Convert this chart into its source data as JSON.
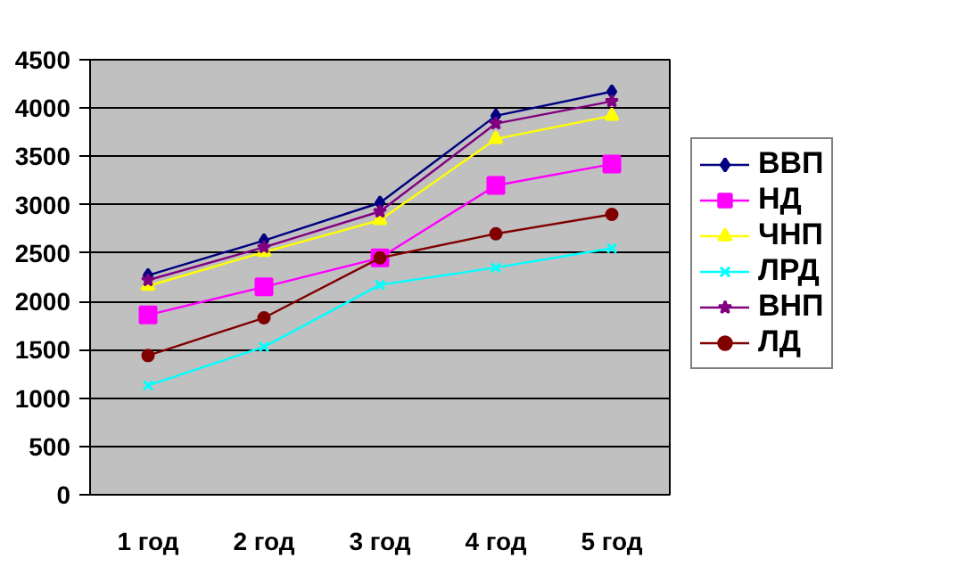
{
  "chart_data": {
    "type": "line",
    "categories": [
      "1 год",
      "2 год",
      "3 год",
      "4 год",
      "5 год"
    ],
    "ylim": [
      0,
      4500
    ],
    "yticks": [
      0,
      500,
      1000,
      1500,
      2000,
      2500,
      3000,
      3500,
      4000,
      4500
    ],
    "grid": "y",
    "legend": "right",
    "series": [
      {
        "name": "ВВП",
        "color": "#000080",
        "marker": "diamond",
        "values": [
          2270,
          2630,
          3020,
          3920,
          4170
        ]
      },
      {
        "name": "НД",
        "color": "#ff00ff",
        "marker": "square",
        "values": [
          1860,
          2150,
          2450,
          3200,
          3420
        ]
      },
      {
        "name": "ЧНП",
        "color": "#ffff00",
        "marker": "triangle",
        "values": [
          2160,
          2510,
          2840,
          3680,
          3920
        ]
      },
      {
        "name": "ЛРД",
        "color": "#00ffff",
        "marker": "cross",
        "values": [
          1130,
          1530,
          2170,
          2350,
          2550
        ]
      },
      {
        "name": "ВНП",
        "color": "#800080",
        "marker": "star",
        "values": [
          2220,
          2560,
          2930,
          3840,
          4070
        ]
      },
      {
        "name": "ЛД",
        "color": "#800000",
        "marker": "circle",
        "values": [
          1440,
          1830,
          2450,
          2700,
          2900
        ]
      }
    ]
  }
}
